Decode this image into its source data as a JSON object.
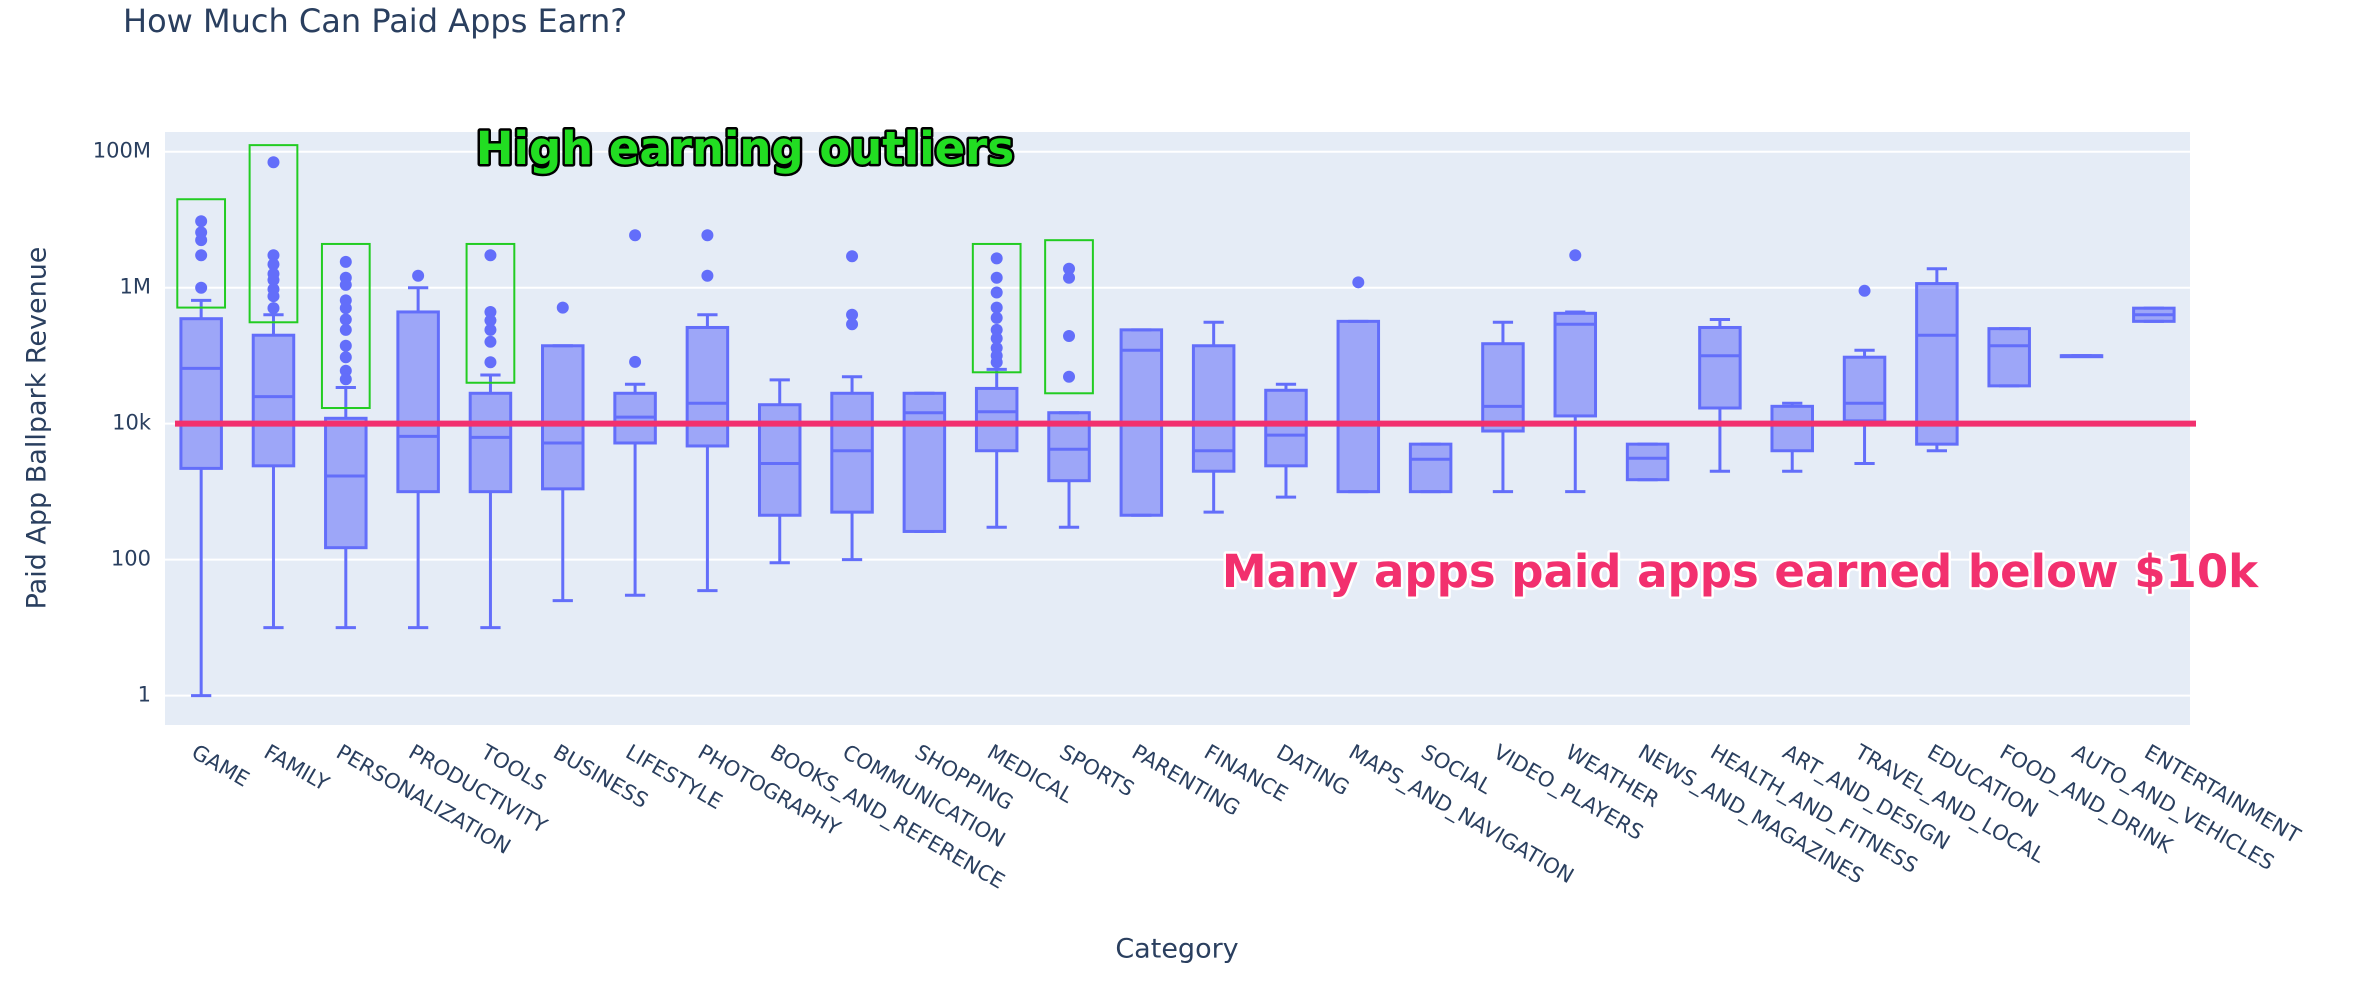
{
  "chart_data": {
    "type": "box",
    "title": "How Much Can Paid Apps Earn?",
    "x_label": "Category",
    "y_label": "Paid App Ballpark Revenue",
    "log_y": true,
    "grid": true,
    "color": "#636efa",
    "categories": [
      "GAME",
      "FAMILY",
      "PERSONALIZATION",
      "PRODUCTIVITY",
      "TOOLS",
      "BUSINESS",
      "LIFESTYLE",
      "PHOTOGRAPHY",
      "BOOKS_AND_REFERENCE",
      "COMMUNICATION",
      "SHOPPING",
      "MEDICAL",
      "SPORTS",
      "PARENTING",
      "FINANCE",
      "DATING",
      "MAPS_AND_NAVIGATION",
      "SOCIAL",
      "VIDEO_PLAYERS",
      "WEATHER",
      "NEWS_AND_MAGAZINES",
      "HEALTH_AND_FITNESS",
      "ART_AND_DESIGN",
      "TRAVEL_AND_LOCAL",
      "EDUCATION",
      "FOOD_AND_DRINK",
      "AUTO_AND_VEHICLES",
      "ENTERTAINMENT"
    ],
    "lower": [
      1,
      10,
      10,
      10,
      10,
      25,
      30,
      35,
      90,
      100,
      260,
      300,
      300,
      450,
      500,
      830,
      1000,
      1000,
      1000,
      1000,
      1500,
      2000,
      2000,
      2600,
      4000,
      36000,
      100000,
      320000
    ],
    "q1": [
      2200,
      2400,
      150,
      1000,
      1000,
      1100,
      5200,
      4700,
      450,
      500,
      260,
      4000,
      1450,
      450,
      2000,
      2400,
      1000,
      1000,
      7800,
      13000,
      1500,
      17000,
      4000,
      11000,
      5000,
      36000,
      100000,
      320000
    ],
    "median": [
      65000,
      25000,
      1700,
      6500,
      6300,
      5200,
      12500,
      20000,
      2600,
      4000,
      14500,
      15000,
      4200,
      120000,
      4000,
      6800,
      10000,
      3000,
      18000,
      290000,
      3100,
      100000,
      10000,
      20000,
      200000,
      140000,
      100000,
      400000
    ],
    "q3": [
      350000,
      200000,
      12000,
      440000,
      28000,
      140000,
      28000,
      260000,
      19000,
      28000,
      28000,
      33000,
      14500,
      240000,
      140000,
      31000,
      320000,
      5000,
      150000,
      420000,
      5000,
      260000,
      18000,
      95000,
      1150000,
      250000,
      100000,
      500000
    ],
    "upper": [
      650000,
      400000,
      34000,
      1000000,
      52000,
      140000,
      38000,
      400000,
      44000,
      49000,
      28000,
      63000,
      14500,
      240000,
      310000,
      38000,
      320000,
      5000,
      310000,
      440000,
      5000,
      340000,
      20000,
      120000,
      1900000,
      250000,
      100000,
      500000
    ],
    "outliers": [
      [
        9500000,
        6500000,
        5000000,
        3000000,
        1000000
      ],
      [
        70000000,
        3000000,
        2200000,
        1600000,
        1300000,
        950000,
        750000,
        500000
      ],
      [
        2400000,
        1400000,
        1100000,
        650000,
        500000,
        340000,
        240000,
        140000,
        95000,
        60000,
        45000
      ],
      [
        1500000
      ],
      [
        3000000,
        440000,
        330000,
        240000,
        160000,
        80000
      ],
      [
        510000
      ],
      [
        5900000,
        81000
      ],
      [
        5900000,
        1500000
      ],
      [],
      [
        2900000,
        400000,
        290000
      ],
      [],
      [
        2700000,
        1400000,
        850000,
        510000,
        360000,
        240000,
        180000,
        130000,
        100000,
        80000
      ],
      [
        1900000,
        1400000,
        195000,
        49000
      ],
      [],
      [],
      [],
      [
        1200000
      ],
      [],
      [],
      [
        3000000
      ],
      [],
      [],
      [],
      [
        900000
      ],
      [],
      [],
      [],
      []
    ],
    "ylim": [
      0.37,
      195000000
    ],
    "yticks": [
      1,
      100,
      {
        "value": 10000,
        "label": "10k"
      },
      {
        "value": 1000000,
        "label": "1M"
      },
      {
        "value": 100000000,
        "label": "100M"
      }
    ],
    "reference_line": {
      "value": 10000,
      "color": "#f2306e"
    },
    "highlights": {
      "color": "#22cc22",
      "boxes": [
        {
          "category": "GAME",
          "y0": 510000,
          "y1": 20000000
        },
        {
          "category": "FAMILY",
          "y0": 310000,
          "y1": 125000000
        },
        {
          "category": "PERSONALIZATION",
          "y0": 17000,
          "y1": 4400000
        },
        {
          "category": "TOOLS",
          "y0": 40000,
          "y1": 4400000
        },
        {
          "category": "MEDICAL",
          "y0": 57000,
          "y1": 4400000
        },
        {
          "category": "SPORTS",
          "y0": 28000,
          "y1": 5000000
        }
      ]
    },
    "annotations": [
      {
        "text": "High earning outliers",
        "color": "#22dd22"
      },
      {
        "text": "Many apps paid apps earned below $10k",
        "color": "#f2306e"
      }
    ]
  }
}
